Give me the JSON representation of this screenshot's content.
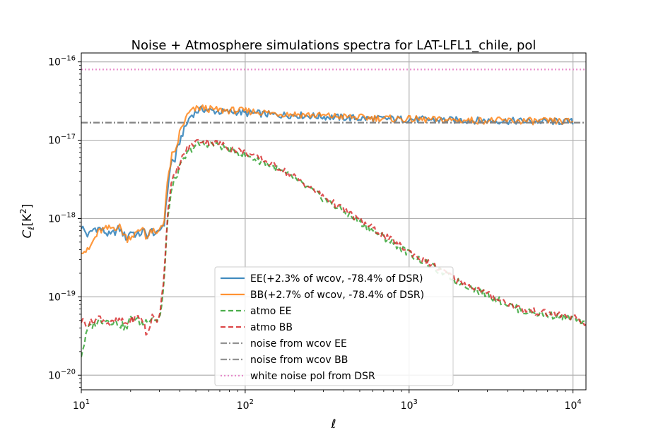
{
  "chart_data": {
    "type": "line",
    "title": "Noise + Atmosphere simulations spectra for LAT-LFL1_chile, pol",
    "xlabel": "ℓ",
    "ylabel_main": "C",
    "ylabel_sub": "ℓ",
    "ylabel_bracket": "[K",
    "ylabel_exp": "2",
    "ylabel_close": "]",
    "xscale": "log",
    "yscale": "log",
    "xlim": [
      10,
      12000
    ],
    "ylim": [
      6.5e-21,
      1.3e-16
    ],
    "grid": true,
    "legend_position": "lower-center",
    "x_ticks": [
      {
        "value": 10,
        "base": "10",
        "exp": "1"
      },
      {
        "value": 100,
        "base": "10",
        "exp": "2"
      },
      {
        "value": 1000,
        "base": "10",
        "exp": "3"
      },
      {
        "value": 10000,
        "base": "10",
        "exp": "4"
      }
    ],
    "y_ticks": [
      {
        "value": 1e-20,
        "base": "10",
        "exp": "−20"
      },
      {
        "value": 1e-19,
        "base": "10",
        "exp": "−19"
      },
      {
        "value": 1e-18,
        "base": "10",
        "exp": "−18"
      },
      {
        "value": 1e-17,
        "base": "10",
        "exp": "−17"
      },
      {
        "value": 1e-16,
        "base": "10",
        "exp": "−16"
      }
    ],
    "series": [
      {
        "name": "EE(+2.3% of wcov, -78.4% of DSR)",
        "color": "#1f77b4",
        "style": "solid",
        "x": [
          10,
          11,
          12,
          13,
          15,
          17,
          19,
          20,
          22,
          24,
          25,
          27,
          29,
          30,
          31,
          32,
          33,
          34,
          35,
          36,
          37,
          38,
          39,
          40,
          42,
          44,
          46,
          50,
          55,
          60,
          70,
          80,
          90,
          100,
          120,
          150,
          200,
          300,
          500,
          1000,
          2000,
          5000,
          10000
        ],
        "y": [
          8e-19,
          6e-19,
          7.5e-19,
          7.5e-19,
          6e-19,
          7.5e-19,
          5.5e-19,
          7e-19,
          6e-19,
          7e-19,
          6e-19,
          7e-19,
          6e-19,
          7e-19,
          8e-19,
          8.5e-19,
          1.5e-18,
          3e-18,
          4.5e-18,
          6e-18,
          5e-18,
          7e-18,
          8e-18,
          1e-17,
          1.3e-17,
          1.6e-17,
          2e-17,
          2.3e-17,
          2.5e-17,
          2.4e-17,
          2.3e-17,
          2.3e-17,
          2.3e-17,
          2.2e-17,
          2.2e-17,
          2.1e-17,
          2.1e-17,
          2e-17,
          1.9e-17,
          1.85e-17,
          1.8e-17,
          1.75e-17,
          1.72e-17
        ]
      },
      {
        "name": "BB(+2.7% of wcov, -78.4% of DSR)",
        "color": "#ff7f0e",
        "style": "solid",
        "x": [
          10,
          11,
          12,
          13,
          15,
          17,
          19,
          20,
          22,
          24,
          25,
          27,
          29,
          30,
          31,
          32,
          33,
          34,
          35,
          36,
          37,
          38,
          39,
          40,
          42,
          44,
          46,
          50,
          55,
          60,
          70,
          80,
          90,
          100,
          120,
          150,
          200,
          300,
          500,
          1000,
          2000,
          5000,
          10000
        ],
        "y": [
          4e-19,
          3.8e-19,
          5.5e-19,
          7e-19,
          7.5e-19,
          8e-19,
          5.5e-19,
          6e-19,
          6.5e-19,
          8e-19,
          5.5e-19,
          7e-19,
          6e-19,
          7.5e-19,
          8.5e-19,
          9e-19,
          2e-18,
          3.5e-18,
          5e-18,
          7e-18,
          6e-18,
          8e-18,
          1e-17,
          1.3e-17,
          1.6e-17,
          2e-17,
          2.3e-17,
          2.5e-17,
          2.6e-17,
          2.5e-17,
          2.4e-17,
          2.4e-17,
          2.4e-17,
          2.35e-17,
          2.3e-17,
          2.2e-17,
          2.15e-17,
          2.05e-17,
          1.95e-17,
          1.85e-17,
          1.8e-17,
          1.76e-17,
          1.73e-17
        ]
      },
      {
        "name": "atmo EE",
        "color": "#2ca02c",
        "style": "dashed",
        "x": [
          10,
          11,
          12,
          13,
          15,
          17,
          19,
          20,
          22,
          24,
          25,
          27,
          29,
          30,
          31,
          32,
          33,
          34,
          35,
          36,
          37,
          38,
          39,
          40,
          42,
          44,
          46,
          50,
          55,
          60,
          70,
          80,
          100,
          150,
          200,
          300,
          500,
          1000,
          2000,
          5000,
          10000,
          12000
        ],
        "y": [
          1.8e-20,
          4e-20,
          4.5e-20,
          5e-20,
          5e-20,
          4.5e-20,
          4e-20,
          5.5e-20,
          5e-20,
          4.5e-20,
          5e-20,
          5.5e-20,
          5e-20,
          5.5e-20,
          8e-20,
          1.5e-19,
          5e-19,
          1.2e-18,
          2e-18,
          2.5e-18,
          3e-18,
          3.5e-18,
          4e-18,
          4.5e-18,
          5.5e-18,
          6.5e-18,
          7.5e-18,
          8.5e-18,
          9e-18,
          9e-18,
          8.5e-18,
          7.5e-18,
          6.5e-18,
          4.5e-18,
          3.2e-18,
          1.8e-18,
          9e-19,
          3.6e-19,
          1.55e-19,
          6.5e-20,
          5.3e-20,
          4.3e-20
        ]
      },
      {
        "name": "atmo BB",
        "color": "#d62728",
        "style": "dashed",
        "x": [
          10,
          11,
          12,
          13,
          15,
          17,
          19,
          20,
          22,
          24,
          25,
          27,
          29,
          30,
          31,
          32,
          33,
          34,
          35,
          36,
          37,
          38,
          39,
          40,
          42,
          44,
          46,
          50,
          55,
          60,
          70,
          80,
          100,
          150,
          200,
          300,
          500,
          1000,
          2000,
          5000,
          10000,
          12000
        ],
        "y": [
          5e-20,
          4.5e-20,
          5e-20,
          5.5e-20,
          4.5e-20,
          5e-20,
          4.5e-20,
          5e-20,
          5.5e-20,
          5e-20,
          3e-20,
          5.5e-20,
          5e-20,
          6e-20,
          1e-19,
          2e-19,
          6e-19,
          1.5e-18,
          2.5e-18,
          3e-18,
          3.5e-18,
          4e-18,
          4.5e-18,
          5e-18,
          6.5e-18,
          7.5e-18,
          8.5e-18,
          9.5e-18,
          1e-17,
          9.5e-18,
          9e-18,
          8e-18,
          7e-18,
          4.8e-18,
          3.4e-18,
          1.9e-18,
          9.5e-19,
          3.8e-19,
          1.6e-19,
          6.8e-20,
          5.5e-20,
          4.4e-20
        ]
      },
      {
        "name": "noise from wcov EE",
        "color": "#7f7f7f",
        "style": "dashdot",
        "x": [
          10,
          12000
        ],
        "y": [
          1.68e-17,
          1.68e-17
        ]
      },
      {
        "name": "noise from wcov BB",
        "color": "#7f7f7f",
        "style": "dashdot",
        "x": [
          10,
          12000
        ],
        "y": [
          1.68e-17,
          1.68e-17
        ]
      },
      {
        "name": "white noise pol from DSR",
        "color": "#e377c2",
        "style": "dotted",
        "x": [
          10,
          12000
        ],
        "y": [
          8e-17,
          8e-17
        ]
      }
    ]
  }
}
